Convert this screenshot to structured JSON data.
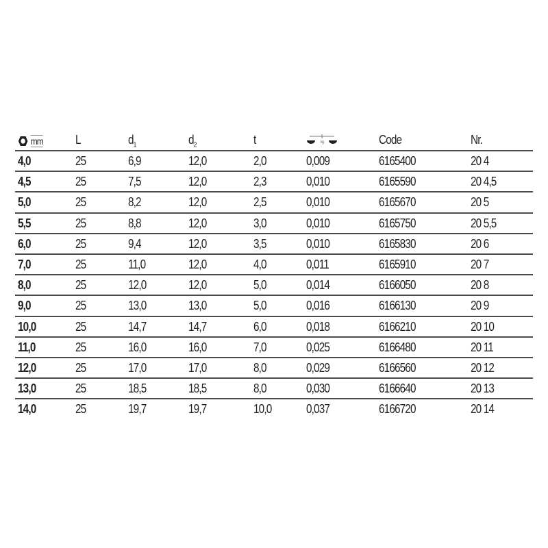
{
  "headers": {
    "size_unit": "mm",
    "L": "L",
    "d1": "d",
    "d1_sub": "1",
    "d2": "d",
    "d2_sub": "2",
    "t": "t",
    "weight_unit": "kg",
    "code": "Code",
    "nr": "Nr."
  },
  "icons": {
    "size": "hexagon-icon",
    "weight": "scale-icon"
  },
  "rows": [
    [
      "4,0",
      "25",
      "6,9",
      "12,0",
      "2,0",
      "0,009",
      "6165400",
      "20 4"
    ],
    [
      "4,5",
      "25",
      "7,5",
      "12,0",
      "2,3",
      "0,010",
      "6165590",
      "20 4,5"
    ],
    [
      "5,0",
      "25",
      "8,2",
      "12,0",
      "2,5",
      "0,010",
      "6165670",
      "20 5"
    ],
    [
      "5,5",
      "25",
      "8,8",
      "12,0",
      "3,0",
      "0,010",
      "6165750",
      "20 5,5"
    ],
    [
      "6,0",
      "25",
      "9,4",
      "12,0",
      "3,5",
      "0,010",
      "6165830",
      "20 6"
    ],
    [
      "7,0",
      "25",
      "11,0",
      "12,0",
      "4,0",
      "0,011",
      "6165910",
      "20 7"
    ],
    [
      "8,0",
      "25",
      "12,0",
      "12,0",
      "5,0",
      "0,014",
      "6166050",
      "20 8"
    ],
    [
      "9,0",
      "25",
      "13,0",
      "13,0",
      "5,0",
      "0,016",
      "6166130",
      "20 9"
    ],
    [
      "10,0",
      "25",
      "14,7",
      "14,7",
      "6,0",
      "0,018",
      "6166210",
      "20 10"
    ],
    [
      "11,0",
      "25",
      "16,0",
      "16,0",
      "7,0",
      "0,025",
      "6166480",
      "20 11"
    ],
    [
      "12,0",
      "25",
      "17,0",
      "17,0",
      "8,0",
      "0,029",
      "6166560",
      "20 12"
    ],
    [
      "13,0",
      "25",
      "18,5",
      "18,5",
      "8,0",
      "0,030",
      "6166640",
      "20 13"
    ],
    [
      "14,0",
      "25",
      "19,7",
      "19,7",
      "10,0",
      "0,037",
      "6166720",
      "20 14"
    ]
  ]
}
